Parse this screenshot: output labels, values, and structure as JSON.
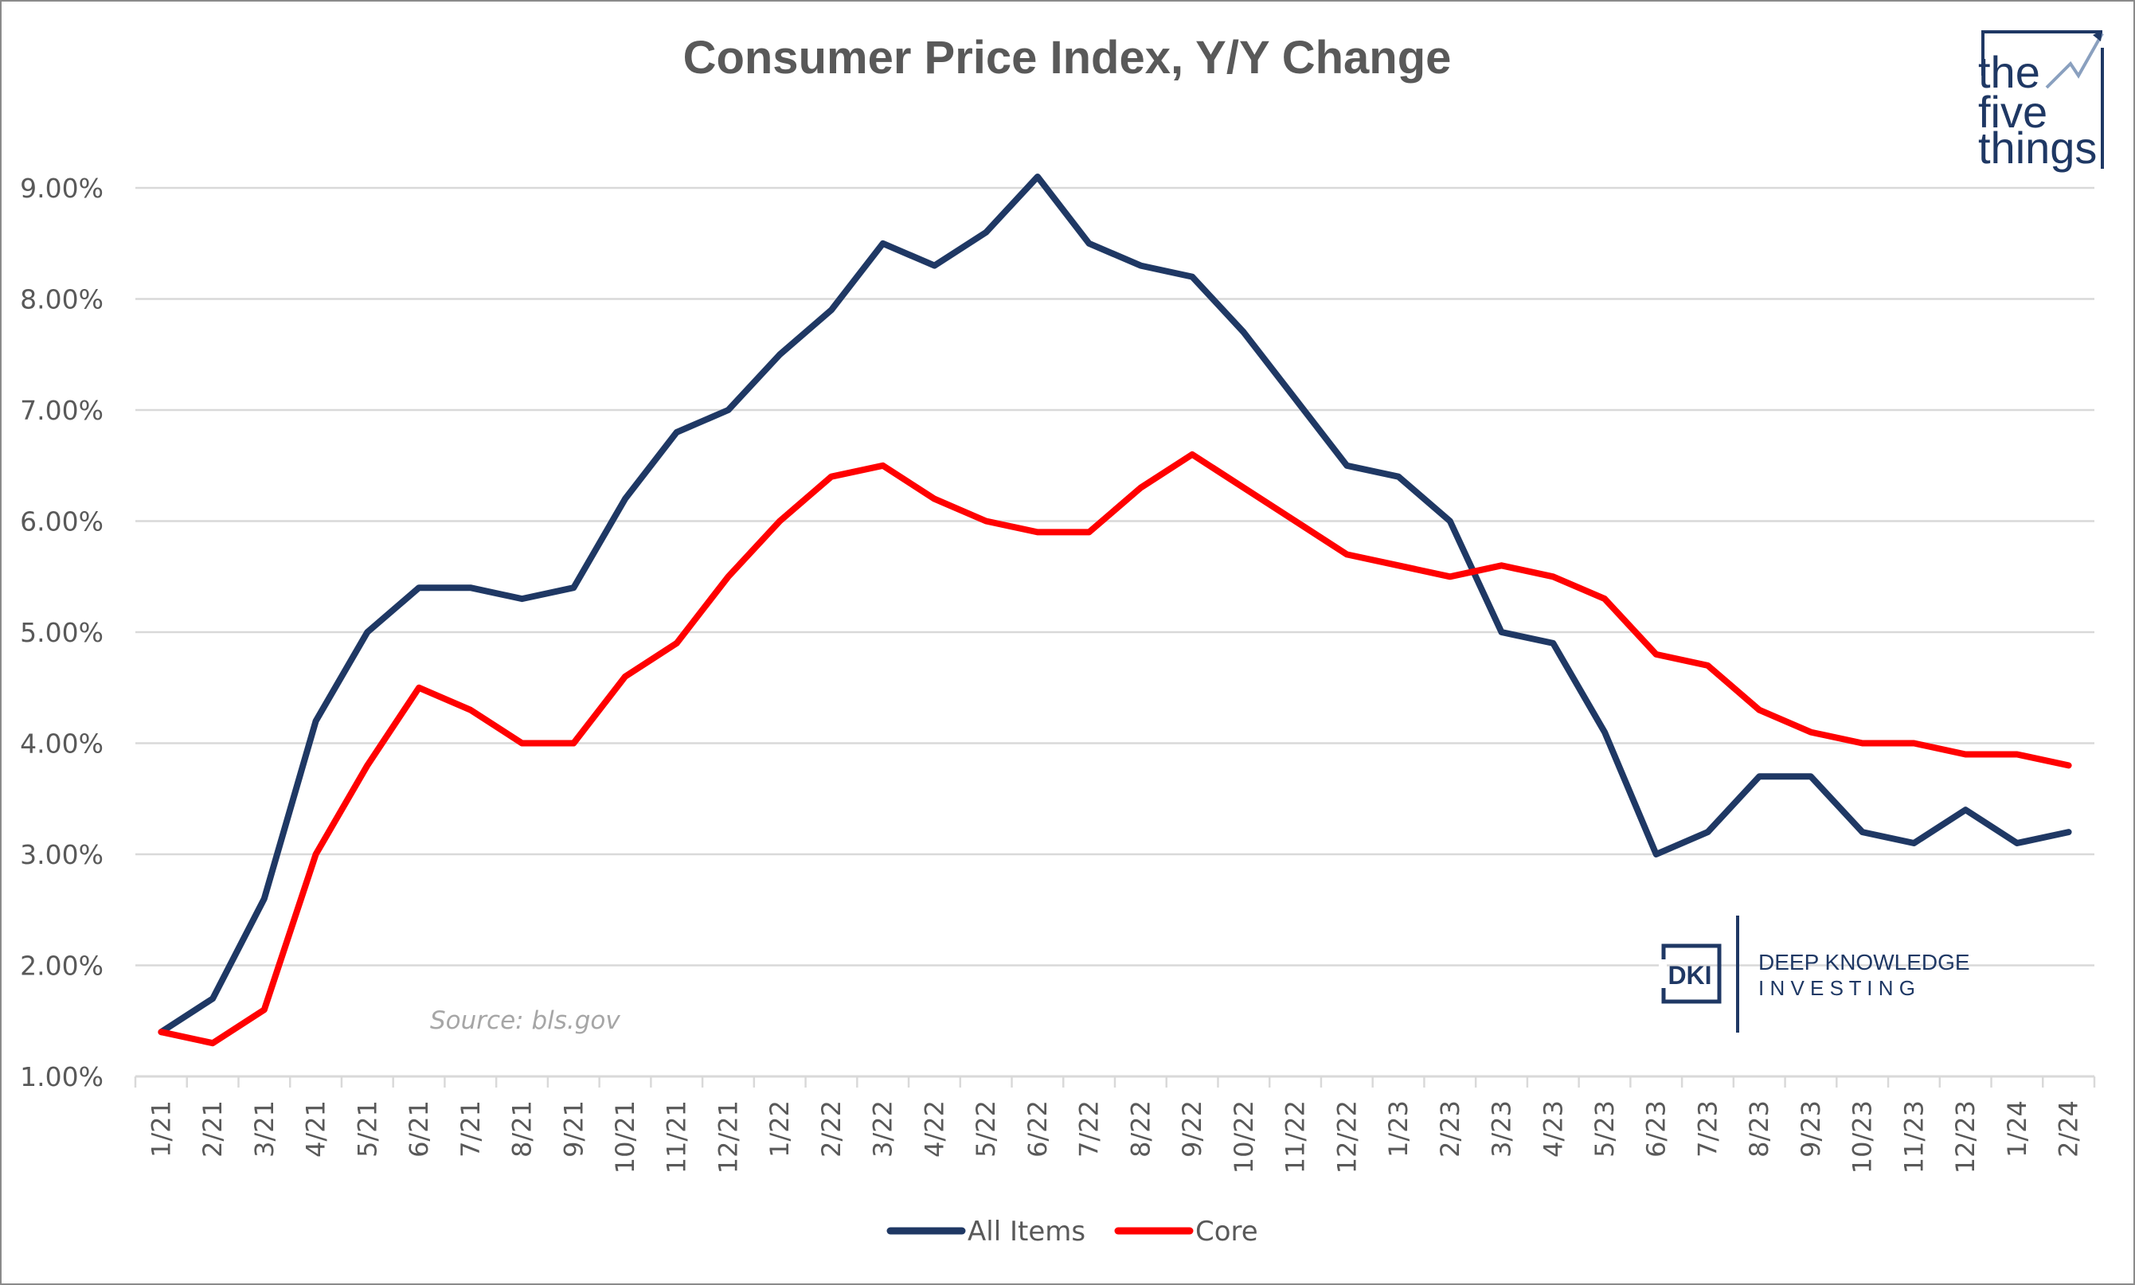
{
  "chart_data": {
    "type": "line",
    "title": "Consumer Price Index, Y/Y Change",
    "xlabel": "",
    "ylabel": "",
    "ylim": [
      1.0,
      9.0
    ],
    "yticks": [
      "1.00%",
      "2.00%",
      "3.00%",
      "4.00%",
      "5.00%",
      "6.00%",
      "7.00%",
      "8.00%",
      "9.00%"
    ],
    "grid": true,
    "legend_position": "bottom-center",
    "categories": [
      "1/21",
      "2/21",
      "3/21",
      "4/21",
      "5/21",
      "6/21",
      "7/21",
      "8/21",
      "9/21",
      "10/21",
      "11/21",
      "12/21",
      "1/22",
      "2/22",
      "3/22",
      "4/22",
      "5/22",
      "6/22",
      "7/22",
      "8/22",
      "9/22",
      "10/22",
      "11/22",
      "12/22",
      "1/23",
      "2/23",
      "3/23",
      "4/23",
      "5/23",
      "6/23",
      "7/23",
      "8/23",
      "9/23",
      "10/23",
      "11/23",
      "12/23",
      "1/24",
      "2/24"
    ],
    "series": [
      {
        "name": "All Items",
        "color": "#1f3864",
        "values": [
          1.4,
          1.7,
          2.6,
          4.2,
          5.0,
          5.4,
          5.4,
          5.3,
          5.4,
          6.2,
          6.8,
          7.0,
          7.5,
          7.9,
          8.5,
          8.3,
          8.6,
          9.1,
          8.5,
          8.3,
          8.2,
          7.7,
          7.1,
          6.5,
          6.4,
          6.0,
          5.0,
          4.9,
          4.1,
          3.0,
          3.2,
          3.7,
          3.7,
          3.2,
          3.1,
          3.4,
          3.1,
          3.2
        ]
      },
      {
        "name": "Core",
        "color": "#ff0000",
        "values": [
          1.4,
          1.3,
          1.6,
          3.0,
          3.8,
          4.5,
          4.3,
          4.0,
          4.0,
          4.6,
          4.9,
          5.5,
          6.0,
          6.4,
          6.5,
          6.2,
          6.0,
          5.9,
          5.9,
          6.3,
          6.6,
          6.3,
          6.0,
          5.7,
          5.6,
          5.5,
          5.6,
          5.5,
          5.3,
          4.8,
          4.7,
          4.3,
          4.1,
          4.0,
          4.0,
          3.9,
          3.9,
          3.8
        ]
      }
    ],
    "annotations": [
      "Source: bls.gov"
    ]
  },
  "branding": {
    "five_things": {
      "line1": "the",
      "line2": "five",
      "line3": "things"
    },
    "dki": {
      "badge": "DKI",
      "line1": "DEEP KNOWLEDGE",
      "line2": "I N V E S T I N G"
    }
  }
}
